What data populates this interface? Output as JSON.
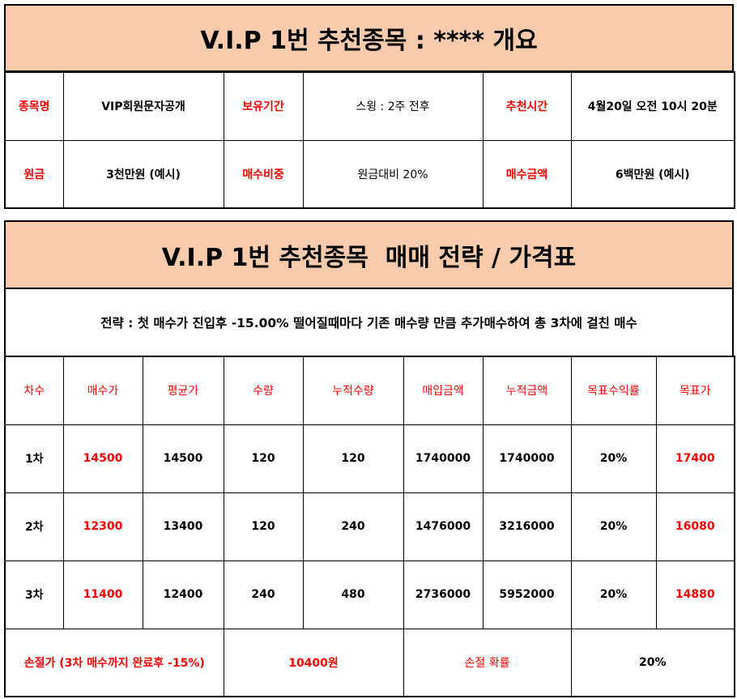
{
  "overview": {
    "title": "V.I.P 1번 추천종목 : **** 개요",
    "rows": [
      [
        {
          "label": "종목명",
          "value": "VIP회원문자공개"
        },
        {
          "label": "보유기간",
          "value": "스윙 : 2주 전후"
        },
        {
          "label": "추천시간",
          "value": "4월20일 오전 10시 20분"
        }
      ],
      [
        {
          "label": "원금",
          "value": "3천만원 (예시)"
        },
        {
          "label": "매수비중",
          "value": "원금대비 20%"
        },
        {
          "label": "매수금액",
          "value": "6백만원 (예시)"
        }
      ]
    ]
  },
  "strategy": {
    "title": "V.I.P 1번 추천종목  매매 전략 / 가격표",
    "description": "전략 : 첫 매수가 진입후 -15.00% 떨어질때마다 기존 매수량 만큼 추가매수하여 총 3차에 걸친 매수",
    "columns": [
      "차수",
      "매수가",
      "평균가",
      "수량",
      "누적수량",
      "매입금액",
      "누적금액",
      "목표수익률",
      "목표가"
    ],
    "rows": [
      [
        "1차",
        "14500",
        "14500",
        "120",
        "120",
        "1740000",
        "1740000",
        "20%",
        "17400"
      ],
      [
        "2차",
        "12300",
        "13400",
        "120",
        "240",
        "1476000",
        "3216000",
        "20%",
        "16080"
      ],
      [
        "3차",
        "11400",
        "12400",
        "240",
        "480",
        "2736000",
        "5952000",
        "20%",
        "14880"
      ]
    ],
    "footer": {
      "stoploss_label": "손절가 (3차 매수까지 완료후 -15%)",
      "stoploss_value": "10400원",
      "prob_label": "손절 확률",
      "prob_value": "20%"
    }
  },
  "colors": {
    "header_bg": "#f8cbad",
    "accent_red": "#ff0000"
  }
}
